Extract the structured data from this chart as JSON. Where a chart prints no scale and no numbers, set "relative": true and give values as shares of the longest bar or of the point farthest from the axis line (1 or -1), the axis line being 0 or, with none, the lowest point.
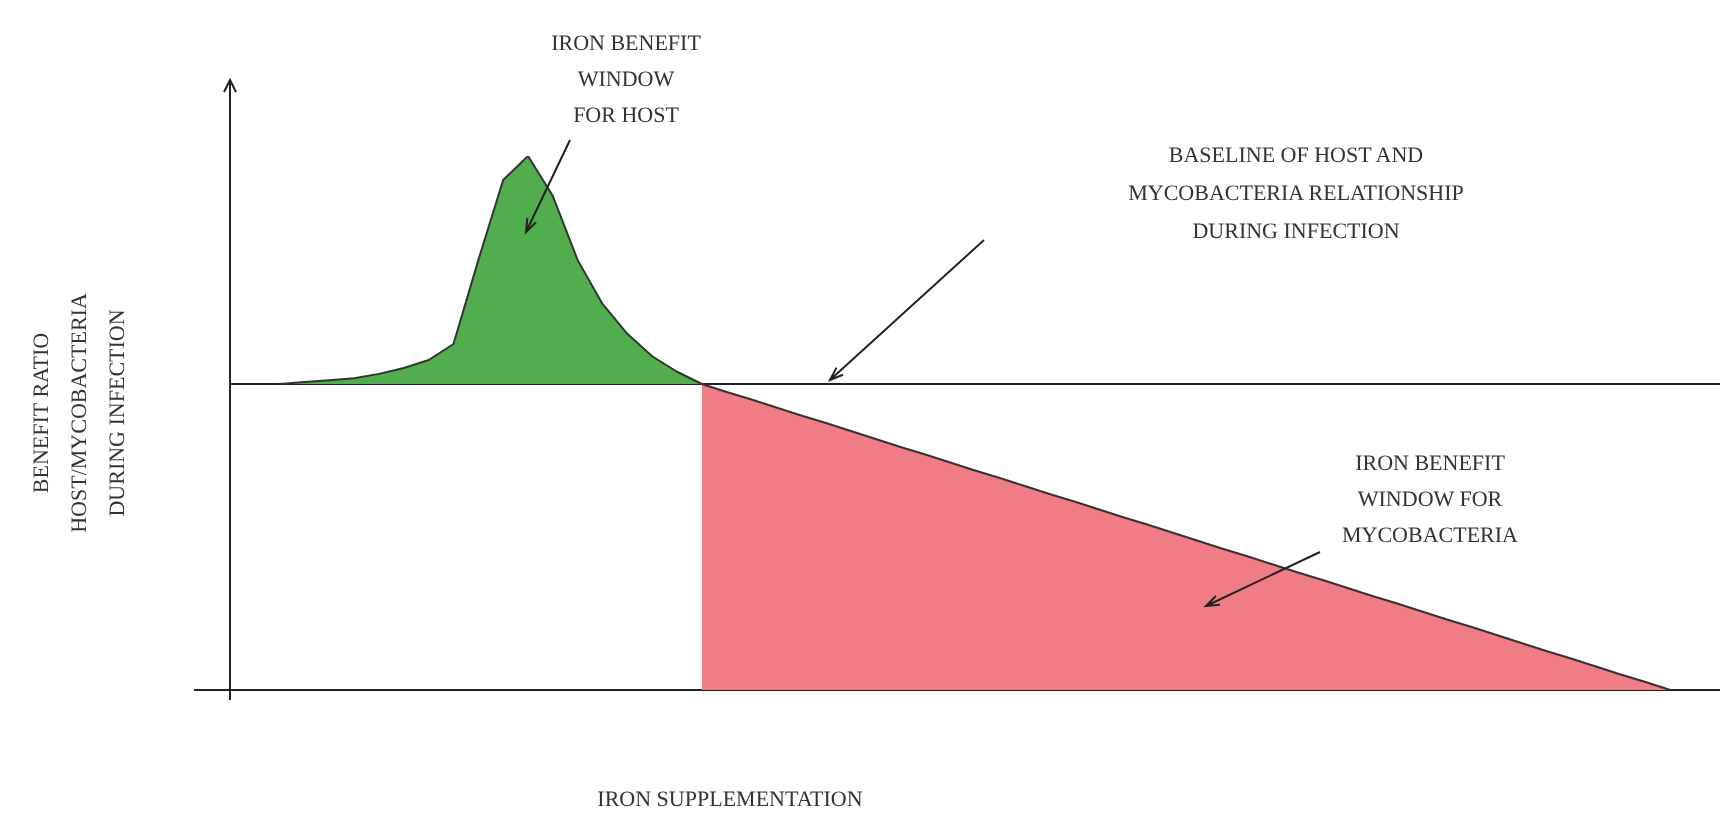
{
  "chart_data": {
    "type": "area",
    "relative": true,
    "xlabel": "IRON SUPPLEMENTATION",
    "ylabel": "BENEFIT RATIO\nHOST/MYCOBACTERIA\nDURING INFECTION",
    "categories": [
      null,
      null,
      null,
      null,
      null,
      null,
      null,
      null,
      null,
      null,
      null,
      null,
      null,
      null,
      null,
      null,
      null,
      null,
      null,
      null,
      null,
      null,
      null,
      null,
      null,
      null,
      null,
      null,
      null,
      null,
      null,
      null,
      null,
      null,
      null,
      null,
      null,
      null,
      null,
      null,
      null,
      null,
      null,
      null,
      null,
      null,
      null,
      null,
      null,
      null,
      null,
      null,
      null,
      null,
      null,
      null,
      null,
      null,
      null,
      null,
      null
    ],
    "series": [
      {
        "color": "#52ad4f",
        "values": [
          null,
          null,
          0.573,
          0.577,
          0.58,
          0.584,
          0.592,
          0.603,
          0.618,
          0.648,
          0.805,
          0.955,
          1,
          0.925,
          0.805,
          0.723,
          0.667,
          0.625,
          0.596,
          0.573,
          null,
          null,
          null,
          null,
          null,
          null,
          null,
          null,
          null,
          null,
          null,
          null,
          null,
          null,
          null,
          null,
          null,
          null,
          null,
          null,
          null,
          null,
          null,
          null,
          null,
          null,
          null,
          null,
          null,
          null,
          null,
          null,
          null,
          null,
          null,
          null,
          null,
          null,
          null,
          null,
          null
        ]
      },
      {
        "color": "#f07c86",
        "values": [
          null,
          null,
          null,
          null,
          null,
          null,
          null,
          null,
          null,
          null,
          null,
          null,
          null,
          null,
          null,
          null,
          null,
          null,
          null,
          0.573,
          0.558,
          0.544,
          0.529,
          0.514,
          0.5,
          0.485,
          0.47,
          0.455,
          0.441,
          0.426,
          0.411,
          0.397,
          0.382,
          0.367,
          0.353,
          0.338,
          0.323,
          0.309,
          0.294,
          0.279,
          0.264,
          0.25,
          0.235,
          0.22,
          0.206,
          0.191,
          0.176,
          0.162,
          0.147,
          0.132,
          0.118,
          0.103,
          0.088,
          0.073,
          0.059,
          0.044,
          0.029,
          0.015,
          0,
          null,
          null
        ]
      }
    ],
    "ref_lines": [
      {
        "axis": "y",
        "value": 0.573,
        "label": "BASELINE OF HOST AND\nMYCOBACTERIA RELATIONSHIP\nDURING INFECTION"
      }
    ],
    "annotations": [
      "IRON BENEFIT\nWINDOW\nFOR HOST",
      "IRON BENEFIT\nWINDOW FOR\nMYCOBACTERIA"
    ],
    "legend": false
  }
}
